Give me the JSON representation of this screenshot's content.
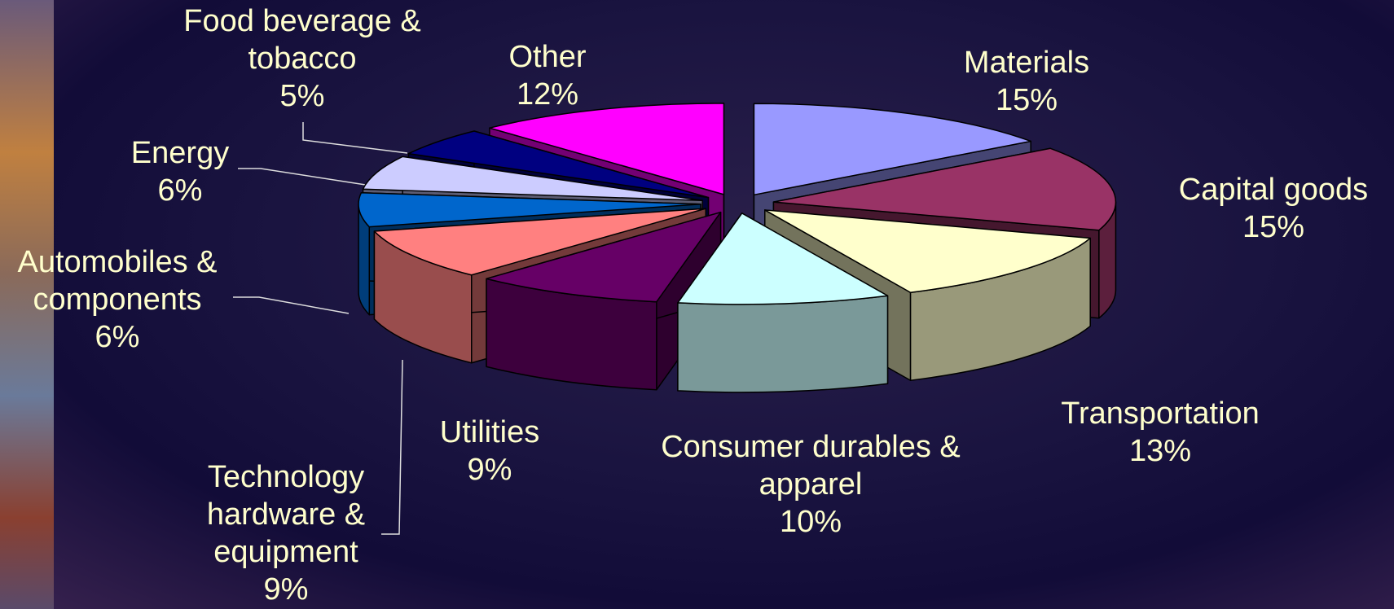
{
  "chart_data": {
    "type": "pie3d",
    "categories": [
      "Materials",
      "Capital goods",
      "Transportation",
      "Consumer durables & apparel",
      "Utilities",
      "Technology hardware & equipment",
      "Automobiles & components",
      "Energy",
      "Food beverage & tobacco",
      "Other"
    ],
    "values": [
      15,
      15,
      13,
      10,
      9,
      9,
      6,
      6,
      5,
      12
    ],
    "value_labels": [
      "15%",
      "15%",
      "13%",
      "10%",
      "9%",
      "9%",
      "6%",
      "6%",
      "5%",
      "12%"
    ],
    "colors": [
      "#9999ff",
      "#993366",
      "#ffffcc",
      "#ccffff",
      "#660066",
      "#ff8080",
      "#0066cc",
      "#ccccff",
      "#000080",
      "#ff00ff"
    ]
  }
}
